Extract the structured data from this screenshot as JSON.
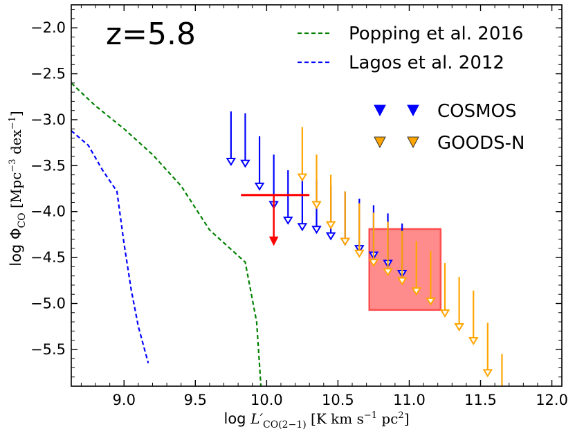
{
  "chart_data": {
    "type": "scatter",
    "title": "",
    "annotation": "z=5.8",
    "xlabel": "log L′CO(2−1) [K km s⁻¹ pc²]",
    "xlabel_parts": {
      "prefix": "log ",
      "symbol": "L′",
      "subscript": "CO(2−1)",
      "units": " [K km s",
      "units_exp": "−1",
      "units_tail": " pc",
      "units_tail_exp": "2",
      "units_close": "]"
    },
    "ylabel": "log ΦCO [Mpc⁻³ dex⁻¹]",
    "ylabel_parts": {
      "prefix": "log Φ",
      "subscript": "CO",
      "units": " [Mpc",
      "units_exp": "−3",
      "units_mid": " dex",
      "units_mid_exp": "−1",
      "units_close": "]"
    },
    "xlim": [
      8.63,
      12.07
    ],
    "ylim": [
      -5.9,
      -1.75
    ],
    "x_ticks": [
      9.0,
      9.5,
      10.0,
      10.5,
      11.0,
      11.5,
      12.0
    ],
    "x_tick_labels": [
      "9.0",
      "9.5",
      "10.0",
      "10.5",
      "11.0",
      "11.5",
      "12.0"
    ],
    "y_ticks": [
      -2.0,
      -2.5,
      -3.0,
      -3.5,
      -4.0,
      -4.5,
      -5.0,
      -5.5
    ],
    "y_tick_labels": [
      "−2.0",
      "−2.5",
      "−3.0",
      "−3.5",
      "−4.0",
      "−4.5",
      "−5.0",
      "−5.5"
    ],
    "grid": false,
    "legend_placement": "top-right",
    "colors": {
      "popping": "#008000",
      "lagos": "#0000ff",
      "cosmos": "#0000ff",
      "goods_n": "#ffa500",
      "red_limit": "#ff0000",
      "box_fill": "#ff6666",
      "box_edge": "#ff4d4d"
    },
    "series": [
      {
        "name": "Popping et al. 2016",
        "kind": "model-line",
        "style": "dashed",
        "color": "#008000",
        "x": [
          8.63,
          8.8,
          9.0,
          9.2,
          9.4,
          9.6,
          9.85,
          9.93,
          9.96
        ],
        "y": [
          -2.6,
          -2.85,
          -3.1,
          -3.38,
          -3.72,
          -4.2,
          -4.55,
          -5.2,
          -5.9
        ]
      },
      {
        "name": "Lagos et al. 2012",
        "kind": "model-line",
        "style": "dashed",
        "color": "#0000ff",
        "x": [
          8.63,
          8.75,
          8.85,
          8.95,
          9.0,
          9.05,
          9.1,
          9.17
        ],
        "y": [
          -3.12,
          -3.28,
          -3.55,
          -3.78,
          -4.35,
          -4.85,
          -5.25,
          -5.65
        ]
      },
      {
        "name": "COSMOS",
        "kind": "upper-limits",
        "color": "#0000ff",
        "x": [
          9.75,
          9.85,
          9.95,
          10.05,
          10.15,
          10.25,
          10.35,
          10.45,
          10.55,
          10.65,
          10.75,
          10.85,
          10.95
        ],
        "y": [
          -3.46,
          -3.48,
          -3.73,
          -3.93,
          -4.1,
          -4.17,
          -4.2,
          -4.27,
          -4.33,
          -4.41,
          -4.48,
          -4.57,
          -4.68
        ]
      },
      {
        "name": "GOODS-N",
        "kind": "upper-limits",
        "color": "#ffa500",
        "x": [
          10.25,
          10.35,
          10.45,
          10.55,
          10.65,
          10.75,
          10.85,
          10.95,
          11.05,
          11.15,
          11.25,
          11.35,
          11.45,
          11.55,
          11.65
        ],
        "y": [
          -3.63,
          -3.93,
          -4.15,
          -4.33,
          -4.46,
          -4.56,
          -4.66,
          -4.76,
          -4.87,
          -4.98,
          -5.11,
          -5.26,
          -5.41,
          -5.76,
          -6.1
        ]
      },
      {
        "name": "",
        "kind": "red-upper-limit",
        "color": "#ff0000",
        "x": [
          9.82,
          10.3
        ],
        "y": -3.82,
        "arrow_x": 10.05,
        "arrow_to": -4.35
      },
      {
        "name": "",
        "kind": "shaded-box",
        "color": "#ff6666",
        "x": [
          10.72,
          11.22
        ],
        "y": [
          -5.07,
          -4.19
        ]
      }
    ],
    "legend": {
      "lines": [
        {
          "label": "Popping et al. 2016",
          "color": "#008000"
        },
        {
          "label": "Lagos et al. 2012",
          "color": "#0000ff"
        }
      ],
      "markers": [
        {
          "label": "COSMOS",
          "color": "#0000ff"
        },
        {
          "label": "GOODS-N",
          "color": "#ffa500"
        }
      ]
    }
  }
}
